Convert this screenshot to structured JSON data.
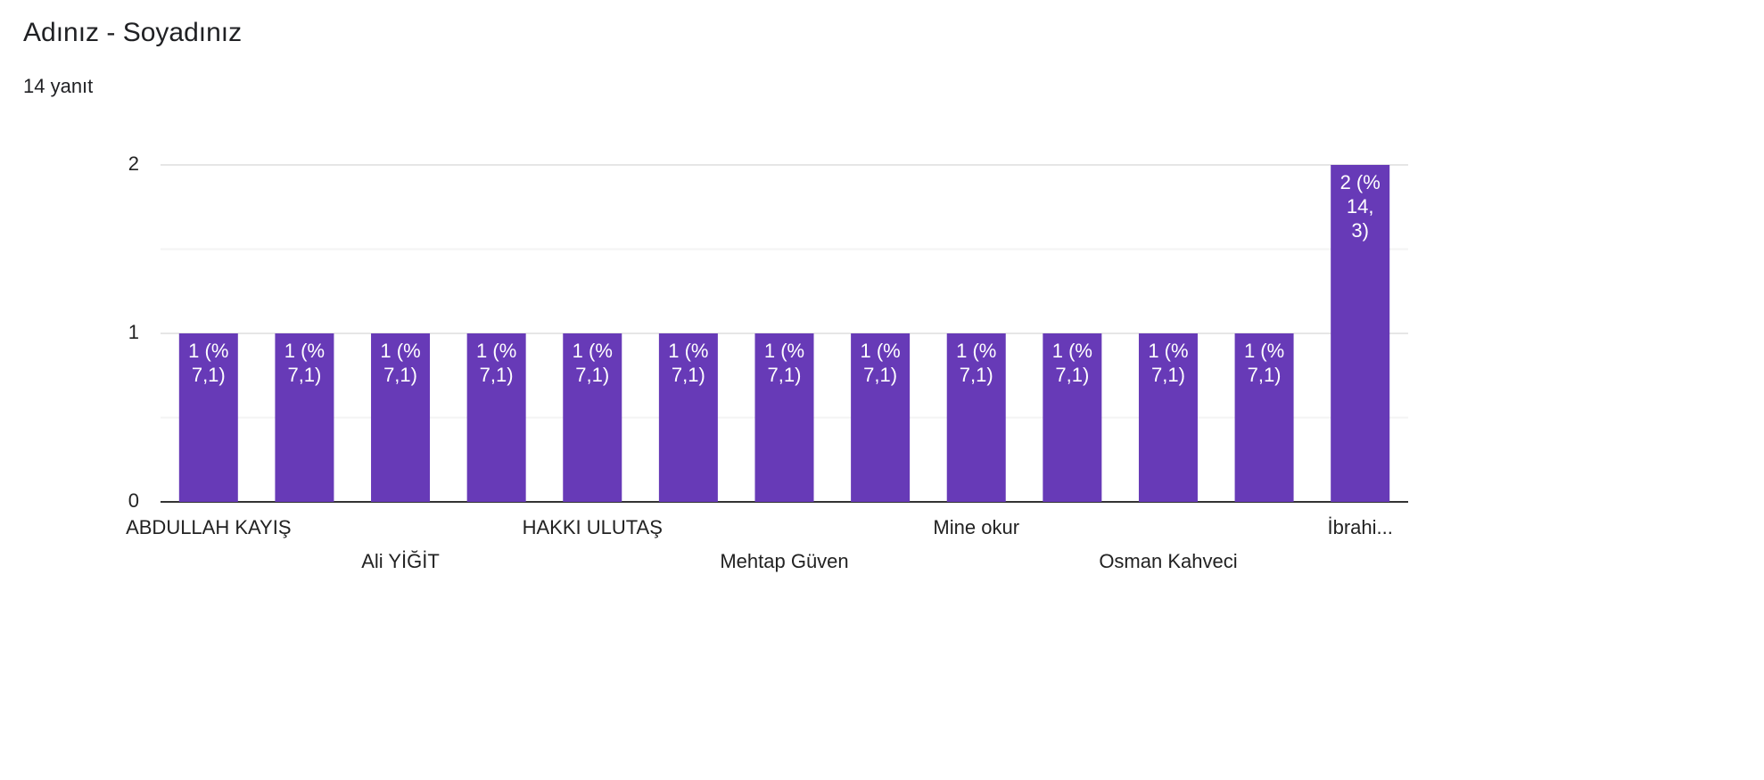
{
  "chart_data": {
    "type": "bar",
    "title": "Adınız - Soyadınız",
    "subtitle": "14 yanıt",
    "categories": [
      "ABDULLAH KAYIŞ",
      null,
      "Ali YİĞİT",
      null,
      "HAKKI ULUTAŞ",
      null,
      "Mehtap Güven",
      null,
      "Mine okur",
      null,
      "Osman Kahveci",
      null,
      "İbrahi..."
    ],
    "values": [
      1,
      1,
      1,
      1,
      1,
      1,
      1,
      1,
      1,
      1,
      1,
      1,
      2
    ],
    "value_labels": [
      "1 (% 7,1)",
      "1 (% 7,1)",
      "1 (% 7,1)",
      "1 (% 7,1)",
      "1 (% 7,1)",
      "1 (% 7,1)",
      "1 (% 7,1)",
      "1 (% 7,1)",
      "1 (% 7,1)",
      "1 (% 7,1)",
      "1 (% 7,1)",
      "1 (% 7,1)",
      "2 (% 14, 3)"
    ],
    "color": "#673ab7",
    "ylim": [
      0,
      2
    ],
    "yticks": [
      0,
      1,
      2
    ],
    "minor_yticks": [
      0.5,
      1.5
    ],
    "grid": true
  }
}
